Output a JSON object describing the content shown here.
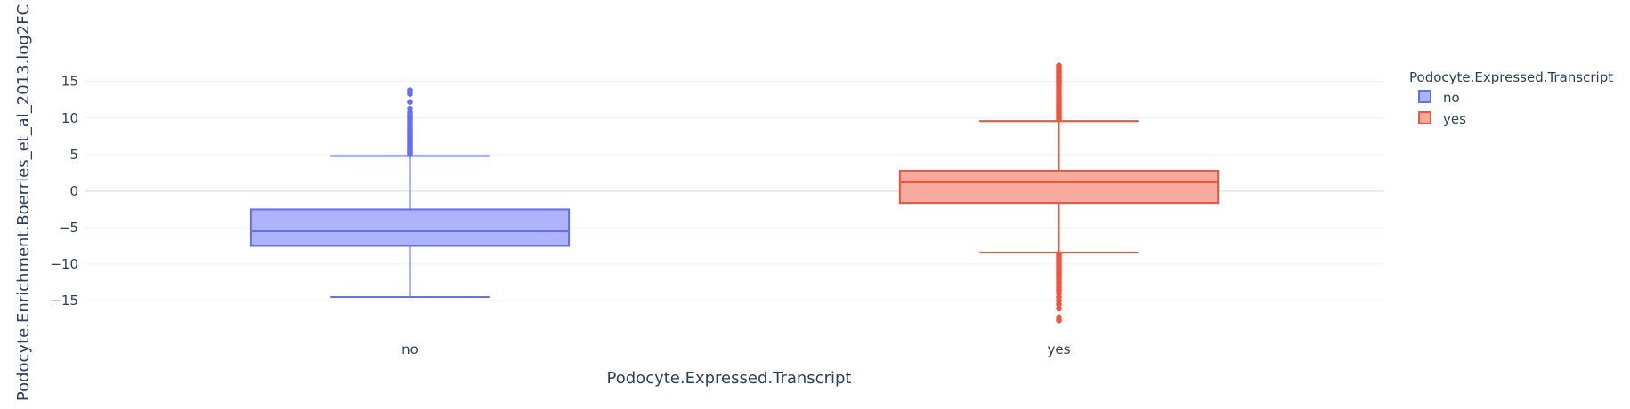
{
  "chart_data": {
    "type": "box",
    "xlabel": "Podocyte.Expressed.Transcript",
    "ylabel": "Podocyte.Enrichment.Boerries_et_al_2013.log2FC",
    "categories": [
      "no",
      "yes"
    ],
    "ylim": [
      -19.5,
      18.5
    ],
    "yticks": [
      15,
      10,
      5,
      0,
      -5,
      -10,
      -15
    ],
    "ytick_labels": [
      "15",
      "10",
      "5",
      "0",
      "−5",
      "−10",
      "−15"
    ],
    "grid": true,
    "legend": {
      "title": "Podocyte.Expressed.Transcript",
      "placement": "top-right",
      "entries": [
        "no",
        "yes"
      ]
    },
    "series": [
      {
        "name": "no",
        "category": "no",
        "color": "#636efa",
        "fill": "#aeb3fc",
        "min": -14.5,
        "q1": -7.5,
        "median": -5.5,
        "q3": -2.5,
        "max": 4.8,
        "outliers": [
          5.0,
          5.2,
          5.4,
          5.6,
          5.8,
          6.0,
          6.2,
          6.4,
          6.6,
          6.8,
          7.0,
          7.2,
          7.4,
          7.6,
          7.8,
          8.0,
          8.3,
          8.6,
          8.9,
          9.2,
          9.5,
          9.8,
          10.1,
          10.4,
          10.8,
          11.3,
          12.2,
          13.3,
          13.8
        ]
      },
      {
        "name": "yes",
        "category": "yes",
        "color": "#ef553b",
        "fill": "#f7aa9d",
        "min": -8.4,
        "q1": -1.6,
        "median": 1.2,
        "q3": 2.8,
        "max": 9.6,
        "outliers": [
          -8.6,
          -8.9,
          -9.2,
          -9.5,
          -9.8,
          -10.1,
          -10.4,
          -10.7,
          -11.0,
          -11.3,
          -11.6,
          -12.0,
          -12.4,
          -12.8,
          -13.2,
          -13.6,
          -14.0,
          -14.5,
          -15.0,
          -15.5,
          -16.1,
          -17.3,
          -17.7,
          9.8,
          10.1,
          10.4,
          10.7,
          11.0,
          11.3,
          11.6,
          11.9,
          12.2,
          12.5,
          12.8,
          13.1,
          13.4,
          13.7,
          14.0,
          14.3,
          14.6,
          14.9,
          15.2,
          15.5,
          15.8,
          16.1,
          16.4,
          16.7,
          17.0,
          17.2
        ]
      }
    ]
  }
}
